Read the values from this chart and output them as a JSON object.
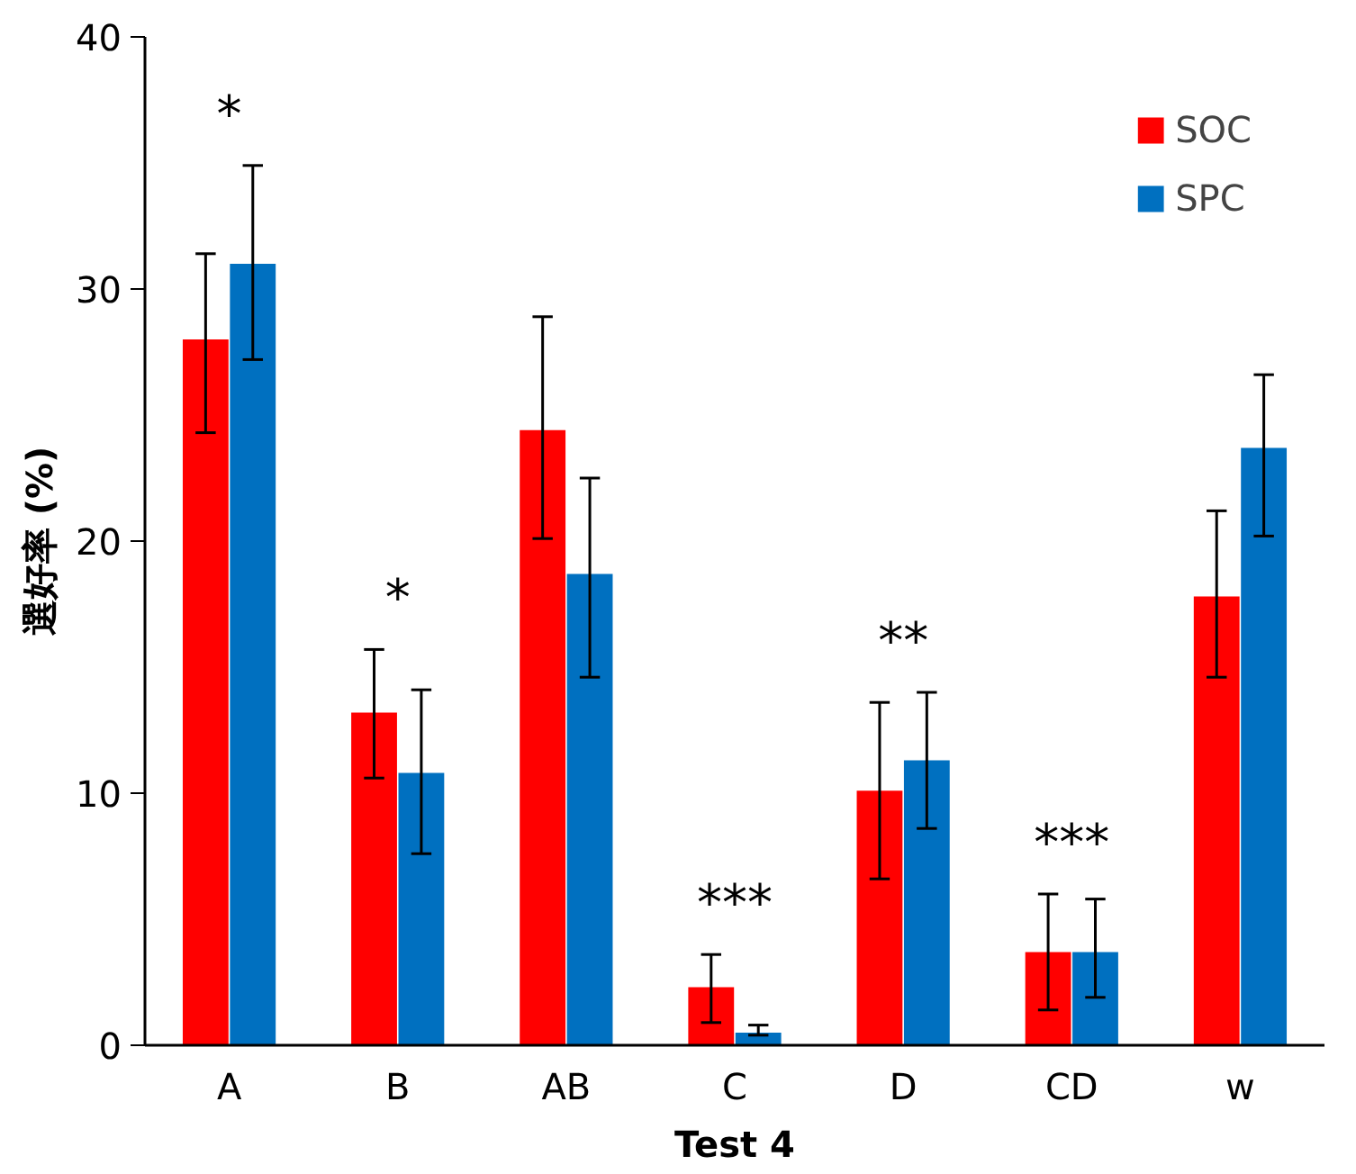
{
  "chart_data": {
    "type": "bar",
    "xlabel": "Test 4",
    "ylabel": "選好率 (%)",
    "categories": [
      "A",
      "B",
      "AB",
      "C",
      "D",
      "CD",
      "w"
    ],
    "series": [
      {
        "name": "SOC",
        "color": "#ff0000",
        "values": [
          28.0,
          13.2,
          24.4,
          2.3,
          10.1,
          3.7,
          17.8
        ],
        "errors": [
          [
            24.3,
            31.4
          ],
          [
            10.6,
            15.7
          ],
          [
            20.1,
            28.9
          ],
          [
            0.9,
            3.6
          ],
          [
            6.6,
            13.6
          ],
          [
            1.4,
            6.0
          ],
          [
            14.6,
            21.2
          ]
        ]
      },
      {
        "name": "SPC",
        "color": "#0070c0",
        "values": [
          31.0,
          10.8,
          18.7,
          0.5,
          11.3,
          3.7,
          23.7
        ],
        "errors": [
          [
            27.2,
            34.9
          ],
          [
            7.6,
            14.1
          ],
          [
            14.6,
            22.5
          ],
          [
            0.4,
            0.8
          ],
          [
            8.6,
            14.0
          ],
          [
            1.9,
            5.8
          ],
          [
            20.2,
            26.6
          ]
        ]
      }
    ],
    "annotations": [
      "*",
      "*",
      "***",
      "**",
      "***"
    ],
    "ylim": [
      0,
      40
    ],
    "yticks": [
      0,
      10,
      20,
      30,
      40
    ],
    "grid": false,
    "legend": "top right"
  }
}
